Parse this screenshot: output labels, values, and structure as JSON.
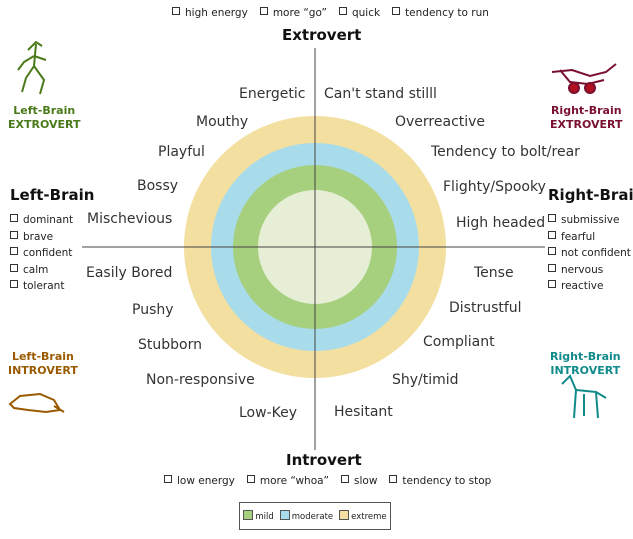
{
  "top": {
    "traits": [
      "high energy",
      "more “go”",
      "quick",
      "tendency to run"
    ],
    "title": "Extrovert"
  },
  "bottom": {
    "title": "Introvert",
    "traits": [
      "low energy",
      "more “whoa”",
      "slow",
      "tendency to stop"
    ]
  },
  "left": {
    "title": "Left-Brain",
    "traits": [
      "dominant",
      "brave",
      "confident",
      "calm",
      "tolerant"
    ]
  },
  "right": {
    "title": "Right-Brain",
    "traits": [
      "submissive",
      "fearful",
      "not confident",
      "nervous",
      "reactive"
    ]
  },
  "corners": {
    "top_left": {
      "line1": "Left-Brain",
      "line2": "EXTROVERT",
      "color": "#4a7a1a"
    },
    "top_right": {
      "line1": "Right-Brain",
      "line2": "EXTROVERT",
      "color": "#7a1030"
    },
    "bottom_left": {
      "line1": "Left-Brain",
      "line2": "INTROVERT",
      "color": "#9a5a00"
    },
    "bottom_right": {
      "line1": "Right-Brain",
      "line2": "INTROVERT",
      "color": "#108a8a"
    }
  },
  "quadrant_labels": {
    "top_left": [
      "Energetic",
      "Mouthy",
      "Playful",
      "Bossy",
      "Mischevious"
    ],
    "top_right": [
      "Can't stand stilll",
      "Overreactive",
      "Tendency to bolt/rear",
      "Flighty/Spooky",
      "High headed"
    ],
    "bottom_left": [
      "Easily Bored",
      "Pushy",
      "Stubborn",
      "Non-responsive",
      "Low-Key"
    ],
    "bottom_right": [
      "Tense",
      "Distrustful",
      "Compliant",
      "Shy/timid",
      "Hesitant"
    ]
  },
  "legend": [
    {
      "label": "mild",
      "color": "#a6cf7e"
    },
    {
      "label": "moderate",
      "color": "#a9dcea"
    },
    {
      "label": "extreme",
      "color": "#f3dfa0"
    }
  ],
  "colors": {
    "inner": "#e6efd6"
  }
}
